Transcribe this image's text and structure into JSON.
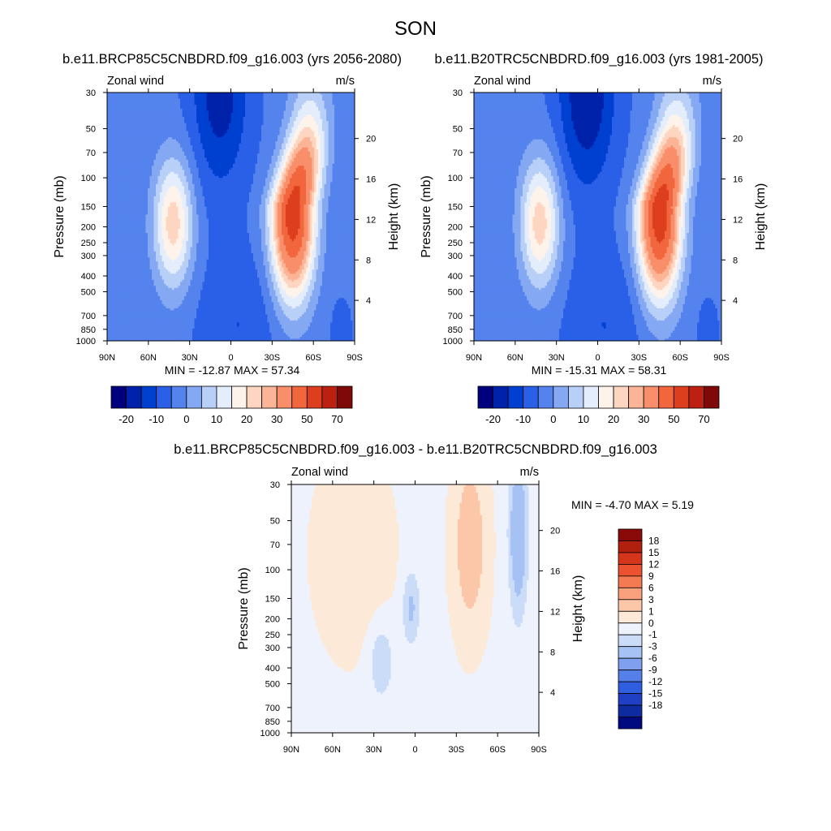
{
  "figure_title": "SON",
  "panels": [
    {
      "id": "p1",
      "title": "b.e11.BRCP85C5CNBDRD.f09_g16.003 (yrs 2056-2080)",
      "left_label": "Zonal wind",
      "right_label": "m/s",
      "ylabel": "Pressure (mb)",
      "ylabel_right": "Height (km)",
      "minmax": "MIN = -12.87  MAX = 57.34"
    },
    {
      "id": "p2",
      "title": "b.e11.B20TRC5CNBDRD.f09_g16.003 (yrs 1981-2005)",
      "left_label": "Zonal wind",
      "right_label": "m/s",
      "ylabel": "Pressure (mb)",
      "ylabel_right": "Height (km)",
      "minmax": "MIN = -15.31  MAX = 58.31"
    },
    {
      "id": "p3",
      "title": "b.e11.BRCP85C5CNBDRD.f09_g16.003 - b.e11.B20TRC5CNBDRD.f09_g16.003",
      "left_label": "Zonal wind",
      "right_label": "m/s",
      "ylabel": "Pressure (mb)",
      "ylabel_right": "Height (km)",
      "minmax": "MIN =  -4.70  MAX =   5.19"
    }
  ],
  "chart_data": [
    {
      "type": "heatmap",
      "panel": "p1",
      "x_ticks": [
        "90N",
        "60N",
        "30N",
        "0",
        "30S",
        "60S",
        "90S"
      ],
      "x_values": [
        90,
        60,
        30,
        0,
        -30,
        -60,
        -90
      ],
      "y_ticks": [
        "30",
        "50",
        "70",
        "100",
        "150",
        "200",
        "250",
        "300",
        "400",
        "500",
        "700",
        "850",
        "1000"
      ],
      "y_range_mb": [
        1000,
        30
      ],
      "height_ticks": [
        "20",
        "16",
        "12",
        "8",
        "4"
      ],
      "height_values_km": [
        20,
        16,
        12,
        8,
        4
      ],
      "min": -12.87,
      "max": 57.34,
      "features": {
        "westerly_jet_sh": {
          "lat": -45,
          "level_mb": 150,
          "max": 57.34
        },
        "westerly_jet_nh": {
          "lat": 45,
          "level_mb": 200,
          "peak": 25
        },
        "easterly_tropics": {
          "lat": 10,
          "level_mb": 30,
          "min": -12.87
        }
      }
    },
    {
      "type": "heatmap",
      "panel": "p2",
      "x_ticks": [
        "90N",
        "60N",
        "30N",
        "0",
        "30S",
        "60S",
        "90S"
      ],
      "x_values": [
        90,
        60,
        30,
        0,
        -30,
        -60,
        -90
      ],
      "y_ticks": [
        "30",
        "50",
        "70",
        "100",
        "150",
        "200",
        "250",
        "300",
        "400",
        "500",
        "700",
        "850",
        "1000"
      ],
      "y_range_mb": [
        1000,
        30
      ],
      "height_ticks": [
        "20",
        "16",
        "12",
        "8",
        "4"
      ],
      "height_values_km": [
        20,
        16,
        12,
        8,
        4
      ],
      "min": -15.31,
      "max": 58.31,
      "features": {
        "westerly_jet_sh": {
          "lat": -45,
          "level_mb": 150,
          "max": 58.31
        },
        "westerly_jet_nh": {
          "lat": 45,
          "level_mb": 200,
          "peak": 25
        },
        "easterly_tropics": {
          "lat": 10,
          "level_mb": 30,
          "min": -15.31
        }
      }
    },
    {
      "type": "heatmap",
      "panel": "p3",
      "x_ticks": [
        "90N",
        "60N",
        "30N",
        "0",
        "30S",
        "60S",
        "90S"
      ],
      "x_values": [
        90,
        60,
        30,
        0,
        -30,
        -60,
        -90
      ],
      "y_ticks": [
        "30",
        "50",
        "70",
        "100",
        "150",
        "200",
        "250",
        "300",
        "400",
        "500",
        "700",
        "850",
        "1000"
      ],
      "y_range_mb": [
        1000,
        30
      ],
      "height_ticks": [
        "20",
        "16",
        "12",
        "8",
        "4"
      ],
      "height_values_km": [
        20,
        16,
        12,
        8,
        4
      ],
      "min": -4.7,
      "max": 5.19
    }
  ],
  "colorbar_main": {
    "labels": [
      "-20",
      "-10",
      "0",
      "10",
      "20",
      "30",
      "50",
      "70"
    ],
    "colors": [
      "#00007f",
      "#0020a0",
      "#0033cc",
      "#1a55e6",
      "#3d72f0",
      "#6a93f2",
      "#9cb8f7",
      "#cfe0fb",
      "#fef0e4",
      "#fdd0b8",
      "#fbae8f",
      "#f88a66",
      "#f3643c",
      "#e2401f",
      "#c22414",
      "#8a0a0a"
    ]
  },
  "colorbar_diff": {
    "labels": [
      "18",
      "15",
      "12",
      "9",
      "6",
      "3",
      "1",
      "0",
      "-1",
      "-3",
      "-6",
      "-9",
      "-12",
      "-15",
      "-18"
    ],
    "colors": [
      "#8a0a0a",
      "#b1200f",
      "#d5351a",
      "#ec5230",
      "#f47a52",
      "#f9a07d",
      "#fcc6a8",
      "#fde9d8",
      "#f3f5fb",
      "#cadcf8",
      "#a6c1f3",
      "#7fa0ee",
      "#5580ea",
      "#2f5fe0",
      "#1f3fc4",
      "#0e2ba0",
      "#000a80"
    ]
  },
  "colors": {
    "main_scale": [
      "#00007f",
      "#0022aa",
      "#0040d0",
      "#2a60e8",
      "#5483ee",
      "#85a8f3",
      "#b8cff8",
      "#e4edfc",
      "#fef3ea",
      "#fdd5c0",
      "#fbb596",
      "#f88f6a",
      "#f2663e",
      "#dd3f1e",
      "#bb2010",
      "#7f0808"
    ],
    "diff_scale": [
      "#000a80",
      "#0e2ba0",
      "#1f3fc4",
      "#2f5fe0",
      "#5580ea",
      "#7fa0ee",
      "#a6c1f3",
      "#cadcf8",
      "#eef2fc",
      "#fde9d8",
      "#fcc6a8",
      "#f9a07d",
      "#f47a52",
      "#ec5230",
      "#d5351a",
      "#b1200f",
      "#8a0a0a"
    ]
  }
}
